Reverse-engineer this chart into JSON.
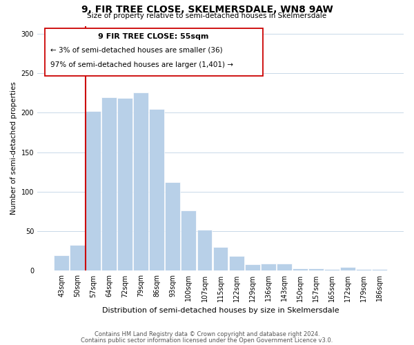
{
  "title": "9, FIR TREE CLOSE, SKELMERSDALE, WN8 9AW",
  "subtitle": "Size of property relative to semi-detached houses in Skelmersdale",
  "xlabel": "Distribution of semi-detached houses by size in Skelmersdale",
  "ylabel": "Number of semi-detached properties",
  "categories": [
    "43sqm",
    "50sqm",
    "57sqm",
    "64sqm",
    "72sqm",
    "79sqm",
    "86sqm",
    "93sqm",
    "100sqm",
    "107sqm",
    "115sqm",
    "122sqm",
    "129sqm",
    "136sqm",
    "143sqm",
    "150sqm",
    "157sqm",
    "165sqm",
    "172sqm",
    "179sqm",
    "186sqm"
  ],
  "values": [
    20,
    33,
    202,
    220,
    219,
    226,
    205,
    112,
    76,
    52,
    30,
    19,
    8,
    9,
    9,
    3,
    3,
    2,
    5,
    2,
    2
  ],
  "bar_color": "#b8d0e8",
  "highlight_line_index": 2,
  "highlight_color": "#cc0000",
  "ylim": [
    0,
    310
  ],
  "yticks": [
    0,
    50,
    100,
    150,
    200,
    250,
    300
  ],
  "annotation_title": "9 FIR TREE CLOSE: 55sqm",
  "annotation_line1": "← 3% of semi-detached houses are smaller (36)",
  "annotation_line2": "97% of semi-detached houses are larger (1,401) →",
  "footer1": "Contains HM Land Registry data © Crown copyright and database right 2024.",
  "footer2": "Contains public sector information licensed under the Open Government Licence v3.0."
}
